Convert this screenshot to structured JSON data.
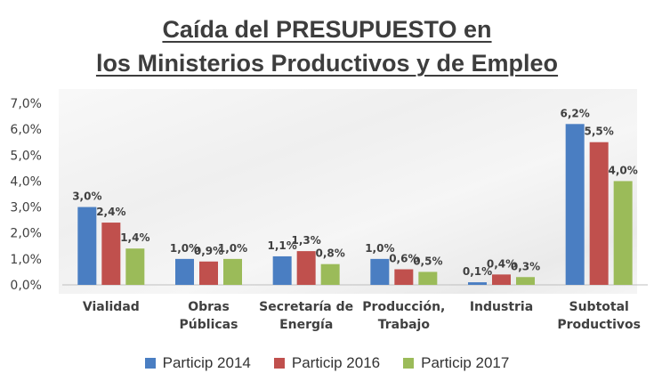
{
  "chart_data": {
    "type": "bar",
    "title_line1": "Caída del PRESUPUESTO en",
    "title_line2": "los Ministerios Productivos y de Empleo",
    "categories": [
      [
        "Vialidad"
      ],
      [
        "Obras",
        "Públicas"
      ],
      [
        "Secretaría de",
        "Energía"
      ],
      [
        "Producción,",
        "Trabajo"
      ],
      [
        "Industria"
      ],
      [
        "Subtotal",
        "Productivos"
      ]
    ],
    "series": [
      {
        "name": "Particip 2014",
        "color": "#4a7ec2",
        "values": [
          3.0,
          1.0,
          1.1,
          1.0,
          0.1,
          6.2
        ],
        "labels": [
          "3,0%",
          "1,0%",
          "1,1%",
          "1,0%",
          "0,1%",
          "6,2%"
        ]
      },
      {
        "name": "Particip 2016",
        "color": "#c0504d",
        "values": [
          2.4,
          0.9,
          1.3,
          0.6,
          0.4,
          5.5
        ],
        "labels": [
          "2,4%",
          "0,9%",
          "1,3%",
          "0,6%",
          "0,4%",
          "5,5%"
        ]
      },
      {
        "name": "Particip 2017",
        "color": "#9bbb59",
        "values": [
          1.4,
          1.0,
          0.8,
          0.5,
          0.3,
          4.0
        ],
        "labels": [
          "1,4%",
          "1,0%",
          "0,8%",
          "0,5%",
          "0,3%",
          "4,0%"
        ]
      }
    ],
    "yticks": [
      "0,0%",
      "1,0%",
      "2,0%",
      "3,0%",
      "4,0%",
      "5,0%",
      "6,0%",
      "7,0%"
    ],
    "ylim": [
      0,
      7
    ],
    "grid": false,
    "legend_position": "bottom"
  }
}
